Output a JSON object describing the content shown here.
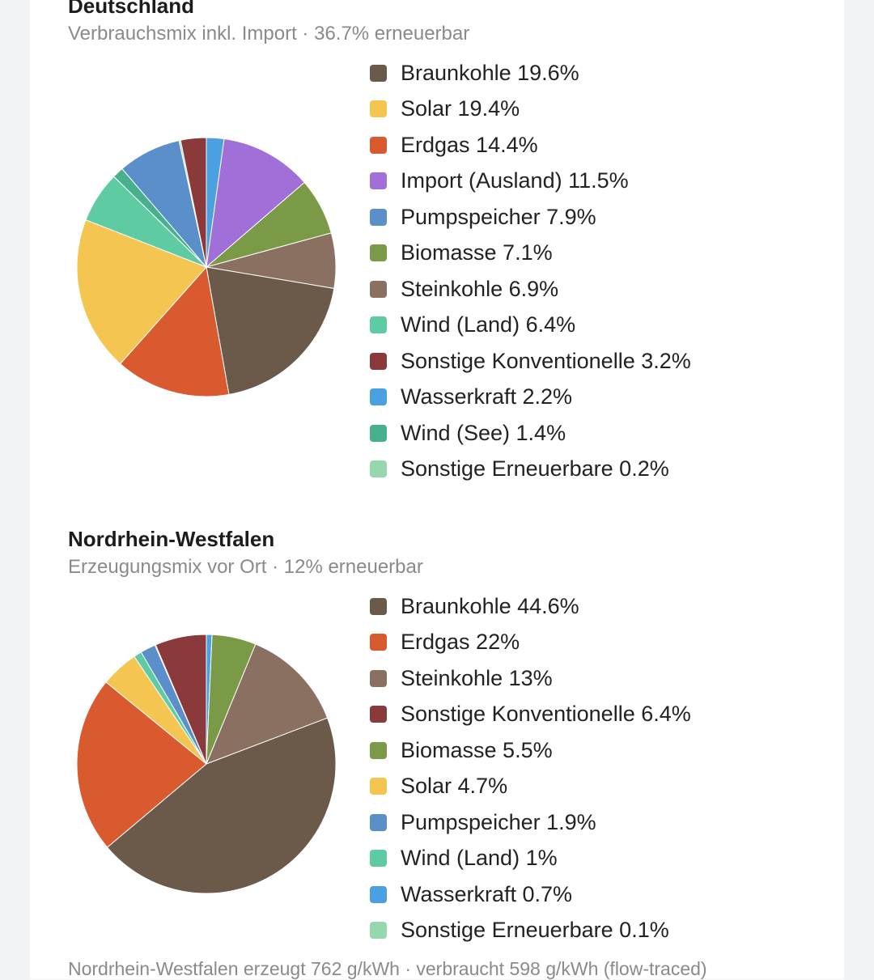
{
  "chart_data": [
    {
      "type": "pie",
      "title": "Deutschland",
      "subtitle": "Verbrauchsmix inkl. Import · 36.7% erneuerbar",
      "legend_position": "right",
      "slices": [
        {
          "label": "Braunkohle",
          "value": 19.6,
          "display": "Braunkohle 19.6%",
          "color": "#6b5a4a"
        },
        {
          "label": "Solar",
          "value": 19.4,
          "display": "Solar 19.4%",
          "color": "#f5c551"
        },
        {
          "label": "Erdgas",
          "value": 14.4,
          "display": "Erdgas 14.4%",
          "color": "#d95a2f"
        },
        {
          "label": "Import (Ausland)",
          "value": 11.5,
          "display": "Import (Ausland) 11.5%",
          "color": "#a06fd8"
        },
        {
          "label": "Pumpspeicher",
          "value": 7.9,
          "display": "Pumpspeicher 7.9%",
          "color": "#5b8fc9"
        },
        {
          "label": "Biomasse",
          "value": 7.1,
          "display": "Biomasse 7.1%",
          "color": "#7b9a48"
        },
        {
          "label": "Steinkohle",
          "value": 6.9,
          "display": "Steinkohle 6.9%",
          "color": "#8a7060"
        },
        {
          "label": "Wind (Land)",
          "value": 6.4,
          "display": "Wind (Land) 6.4%",
          "color": "#5ecba3"
        },
        {
          "label": "Sonstige Konventionelle",
          "value": 3.2,
          "display": "Sonstige Konventionelle 3.2%",
          "color": "#8b3a3c"
        },
        {
          "label": "Wasserkraft",
          "value": 2.2,
          "display": "Wasserkraft 2.2%",
          "color": "#4aa0e0"
        },
        {
          "label": "Wind (See)",
          "value": 1.4,
          "display": "Wind (See) 1.4%",
          "color": "#48b08f"
        },
        {
          "label": "Sonstige Erneuerbare",
          "value": 0.2,
          "display": "Sonstige Erneuerbare 0.2%",
          "color": "#96d8ad"
        }
      ],
      "slice_order": [
        "Wasserkraft",
        "Import (Ausland)",
        "Biomasse",
        "Steinkohle",
        "Braunkohle",
        "Erdgas",
        "Solar",
        "Wind (Land)",
        "Wind (See)",
        "Pumpspeicher",
        "Sonstige Erneuerbare",
        "Sonstige Konventionelle"
      ]
    },
    {
      "type": "pie",
      "title": "Nordrhein-Westfalen",
      "subtitle": "Erzeugungsmix vor Ort · 12% erneuerbar",
      "legend_position": "right",
      "slices": [
        {
          "label": "Braunkohle",
          "value": 44.6,
          "display": "Braunkohle 44.6%",
          "color": "#6b5a4a"
        },
        {
          "label": "Erdgas",
          "value": 22,
          "display": "Erdgas 22%",
          "color": "#d95a2f"
        },
        {
          "label": "Steinkohle",
          "value": 13,
          "display": "Steinkohle 13%",
          "color": "#8a7060"
        },
        {
          "label": "Sonstige Konventionelle",
          "value": 6.4,
          "display": "Sonstige Konventionelle 6.4%",
          "color": "#8b3a3c"
        },
        {
          "label": "Biomasse",
          "value": 5.5,
          "display": "Biomasse 5.5%",
          "color": "#7b9a48"
        },
        {
          "label": "Solar",
          "value": 4.7,
          "display": "Solar 4.7%",
          "color": "#f5c551"
        },
        {
          "label": "Pumpspeicher",
          "value": 1.9,
          "display": "Pumpspeicher 1.9%",
          "color": "#5b8fc9"
        },
        {
          "label": "Wind (Land)",
          "value": 1,
          "display": "Wind (Land) 1%",
          "color": "#5ecba3"
        },
        {
          "label": "Wasserkraft",
          "value": 0.7,
          "display": "Wasserkraft 0.7%",
          "color": "#4aa0e0"
        },
        {
          "label": "Sonstige Erneuerbare",
          "value": 0.1,
          "display": "Sonstige Erneuerbare 0.1%",
          "color": "#96d8ad"
        }
      ],
      "slice_order": [
        "Wasserkraft",
        "Biomasse",
        "Steinkohle",
        "Braunkohle",
        "Erdgas",
        "Solar",
        "Wind (Land)",
        "Pumpspeicher",
        "Sonstige Erneuerbare",
        "Sonstige Konventionelle"
      ]
    }
  ],
  "footer": "Nordrhein-Westfalen erzeugt 762 g/kWh · verbraucht 598 g/kWh (flow-traced)"
}
